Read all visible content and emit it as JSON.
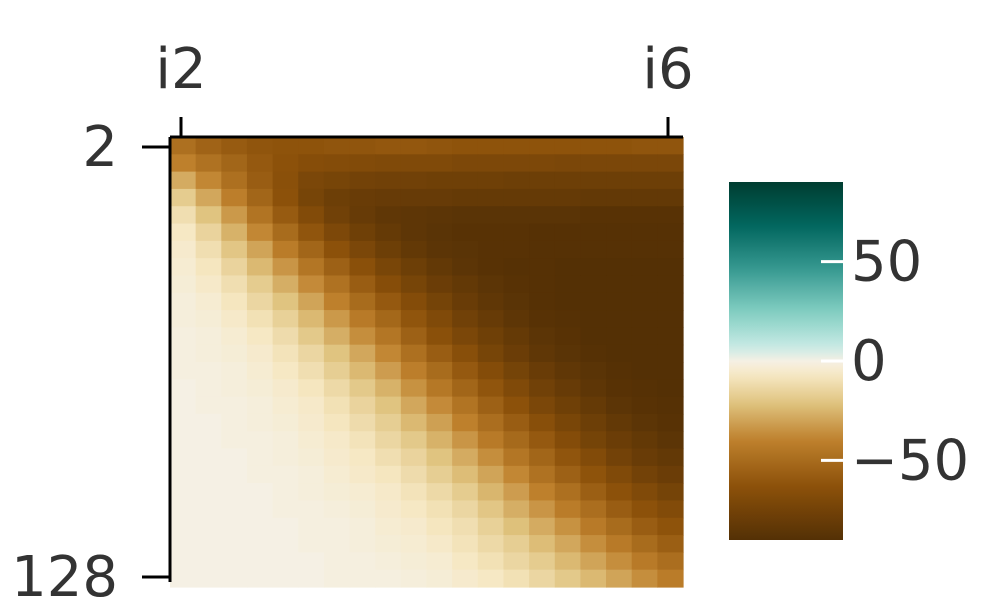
{
  "chart_data": {
    "type": "heatmap",
    "title": "",
    "xlabel": "",
    "ylabel": "",
    "x_ticks": [
      "i2",
      "i6"
    ],
    "y_ticks": [
      "2",
      "128"
    ],
    "x_axis_position": "top",
    "colorbar": {
      "ticks": [
        50,
        0,
        -50
      ],
      "range": [
        -90,
        90
      ],
      "colormap": "BrBG",
      "placement": "right"
    },
    "grid": false,
    "n_cols": 20,
    "n_rows": 26,
    "values": [
      [
        -48,
        -54,
        -58,
        -61,
        -62,
        -62,
        -61,
        -61,
        -60,
        -60,
        -61,
        -62,
        -62,
        -62,
        -62,
        -62,
        -62,
        -62,
        -61,
        -61
      ],
      [
        -40,
        -47,
        -53,
        -59,
        -63,
        -66,
        -67,
        -68,
        -69,
        -69,
        -69,
        -70,
        -70,
        -70,
        -70,
        -71,
        -71,
        -71,
        -71,
        -71
      ],
      [
        -28,
        -38,
        -48,
        -57,
        -64,
        -71,
        -73,
        -75,
        -76,
        -76,
        -77,
        -77,
        -77,
        -78,
        -78,
        -78,
        -78,
        -78,
        -78,
        -78
      ],
      [
        -18,
        -29,
        -41,
        -53,
        -63,
        -73,
        -78,
        -80,
        -81,
        -81,
        -81,
        -82,
        -82,
        -82,
        -82,
        -82,
        -83,
        -83,
        -83,
        -83
      ],
      [
        -11,
        -21,
        -33,
        -46,
        -58,
        -68,
        -76,
        -81,
        -84,
        -85,
        -86,
        -87,
        -87,
        -87,
        -87,
        -87,
        -88,
        -88,
        -88,
        -88
      ],
      [
        -7,
        -15,
        -26,
        -38,
        -50,
        -61,
        -70,
        -77,
        -82,
        -85,
        -87,
        -88,
        -88,
        -88,
        -89,
        -89,
        -89,
        -89,
        -89,
        -89
      ],
      [
        -5,
        -11,
        -20,
        -30,
        -42,
        -53,
        -63,
        -71,
        -78,
        -83,
        -86,
        -87,
        -88,
        -88,
        -89,
        -89,
        -89,
        -89,
        -89,
        -89
      ],
      [
        -4,
        -8,
        -15,
        -24,
        -34,
        -45,
        -55,
        -64,
        -72,
        -78,
        -83,
        -86,
        -88,
        -89,
        -89,
        -90,
        -90,
        -90,
        -90,
        -90
      ],
      [
        -3,
        -6,
        -11,
        -18,
        -27,
        -37,
        -47,
        -57,
        -66,
        -73,
        -79,
        -83,
        -86,
        -88,
        -89,
        -90,
        -90,
        -90,
        -90,
        -90
      ],
      [
        -2,
        -4,
        -8,
        -14,
        -21,
        -30,
        -40,
        -50,
        -59,
        -67,
        -74,
        -80,
        -84,
        -87,
        -89,
        -90,
        -90,
        -90,
        -90,
        -90
      ],
      [
        -2,
        -3,
        -6,
        -10,
        -16,
        -24,
        -33,
        -43,
        -52,
        -61,
        -69,
        -76,
        -81,
        -85,
        -88,
        -89,
        -90,
        -90,
        -90,
        -90
      ],
      [
        -1,
        -2,
        -4,
        -7,
        -12,
        -19,
        -27,
        -36,
        -45,
        -55,
        -64,
        -71,
        -77,
        -82,
        -86,
        -88,
        -90,
        -90,
        -90,
        -90
      ],
      [
        -1,
        -2,
        -3,
        -5,
        -9,
        -14,
        -21,
        -29,
        -38,
        -48,
        -57,
        -65,
        -73,
        -79,
        -84,
        -87,
        -89,
        -90,
        -90,
        -90
      ],
      [
        -1,
        -1,
        -2,
        -4,
        -7,
        -11,
        -17,
        -24,
        -32,
        -41,
        -50,
        -59,
        -67,
        -74,
        -80,
        -84,
        -87,
        -89,
        -90,
        -90
      ],
      [
        0,
        -1,
        -2,
        -3,
        -5,
        -8,
        -13,
        -19,
        -26,
        -35,
        -44,
        -53,
        -61,
        -69,
        -76,
        -81,
        -85,
        -88,
        -89,
        -90
      ],
      [
        0,
        -1,
        -1,
        -2,
        -4,
        -6,
        -10,
        -15,
        -21,
        -29,
        -37,
        -46,
        -55,
        -63,
        -71,
        -77,
        -82,
        -86,
        -88,
        -89
      ],
      [
        0,
        0,
        -1,
        -2,
        -3,
        -5,
        -8,
        -12,
        -17,
        -24,
        -31,
        -40,
        -49,
        -57,
        -65,
        -72,
        -78,
        -83,
        -86,
        -88
      ],
      [
        0,
        0,
        -1,
        -1,
        -2,
        -4,
        -6,
        -9,
        -14,
        -19,
        -26,
        -34,
        -43,
        -51,
        -59,
        -67,
        -74,
        -79,
        -83,
        -86
      ],
      [
        0,
        0,
        0,
        -1,
        -2,
        -3,
        -5,
        -7,
        -11,
        -15,
        -21,
        -28,
        -36,
        -45,
        -53,
        -61,
        -68,
        -75,
        -80,
        -83
      ],
      [
        0,
        0,
        0,
        -1,
        -1,
        -2,
        -4,
        -6,
        -8,
        -12,
        -17,
        -23,
        -30,
        -38,
        -47,
        -55,
        -62,
        -69,
        -75,
        -79
      ],
      [
        0,
        0,
        0,
        0,
        -1,
        -2,
        -3,
        -4,
        -6,
        -9,
        -13,
        -18,
        -25,
        -32,
        -40,
        -48,
        -56,
        -63,
        -69,
        -74
      ],
      [
        0,
        0,
        0,
        0,
        -1,
        -1,
        -2,
        -3,
        -5,
        -7,
        -10,
        -14,
        -20,
        -27,
        -34,
        -42,
        -49,
        -57,
        -63,
        -68
      ],
      [
        0,
        0,
        0,
        0,
        0,
        -1,
        -1,
        -2,
        -4,
        -5,
        -8,
        -11,
        -16,
        -22,
        -28,
        -35,
        -43,
        -50,
        -57,
        -62
      ],
      [
        0,
        0,
        0,
        0,
        0,
        -1,
        -1,
        -2,
        -3,
        -4,
        -6,
        -9,
        -13,
        -17,
        -23,
        -29,
        -36,
        -43,
        -50,
        -56
      ],
      [
        0,
        0,
        0,
        0,
        0,
        0,
        -1,
        -1,
        -2,
        -3,
        -4,
        -7,
        -10,
        -14,
        -18,
        -24,
        -30,
        -36,
        -43,
        -49
      ],
      [
        0,
        0,
        0,
        0,
        0,
        0,
        -1,
        -1,
        -1,
        -2,
        -3,
        -5,
        -7,
        -10,
        -14,
        -19,
        -24,
        -30,
        -36,
        -42
      ]
    ]
  }
}
